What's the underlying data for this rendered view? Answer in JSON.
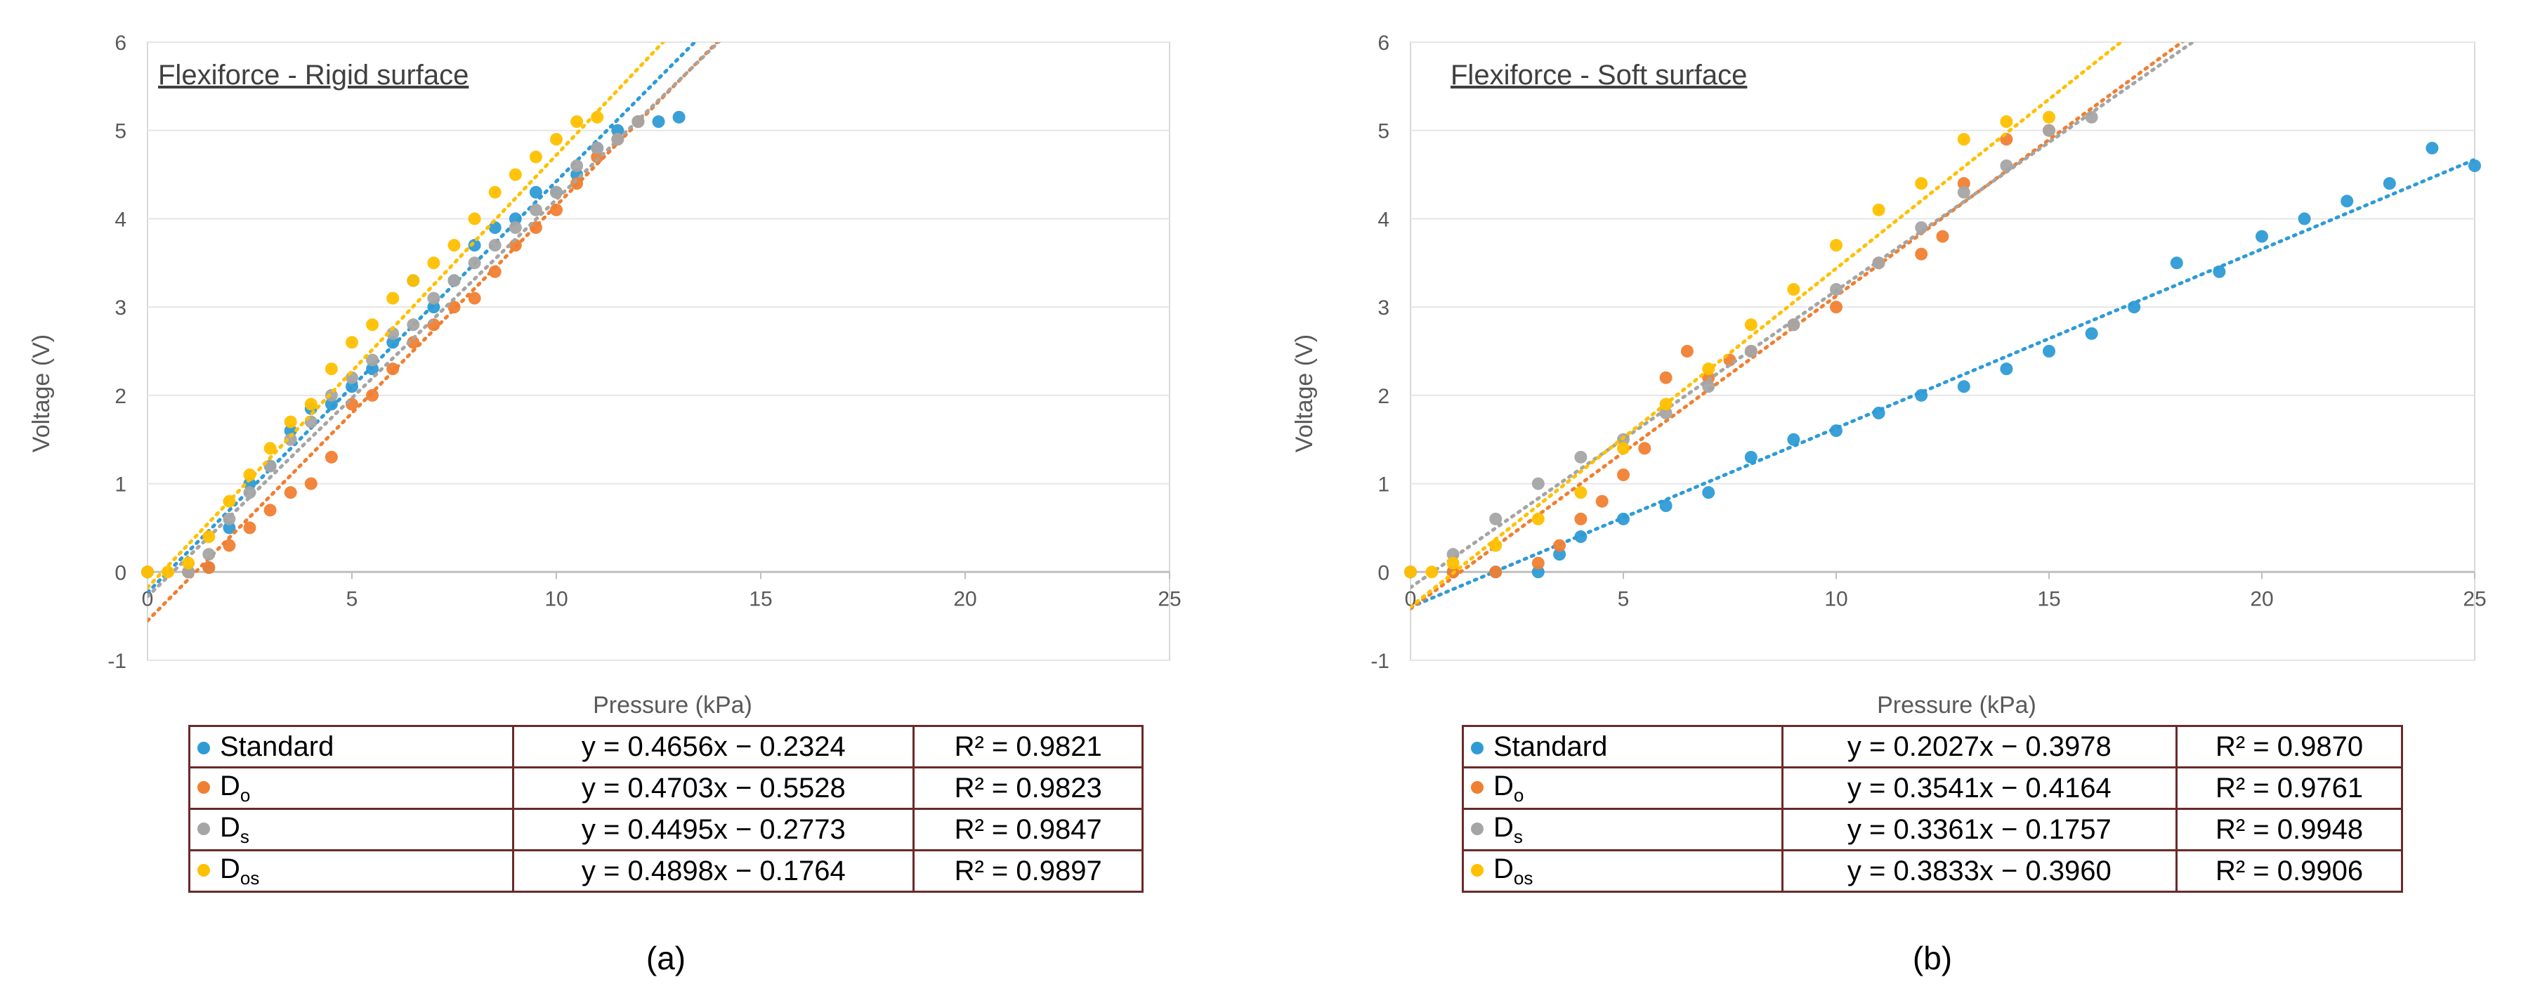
{
  "chart_data": [
    {
      "type": "scatter",
      "panel_label": "(a)",
      "title": "Flexiforce - Rigid surface",
      "xlabel": "Pressure (kPa)",
      "ylabel": "Voltage (V)",
      "xlim": [
        0,
        25
      ],
      "ylim": [
        -1,
        6
      ],
      "xticks": [
        "0",
        "5",
        "10",
        "15",
        "20",
        "25"
      ],
      "yticks": [
        "-1",
        "0",
        "1",
        "2",
        "3",
        "4",
        "5",
        "6"
      ],
      "grid": "horizontal",
      "trendlines": "dotted linear",
      "series": [
        {
          "name": "Standard",
          "sub": "",
          "color": "#2e9bd6",
          "slope": 0.4656,
          "intercept": -0.2324,
          "equation": "y = 0.4656x − 0.2324",
          "r2": "R² = 0.9821",
          "x": [
            0,
            1,
            1.5,
            2,
            2.5,
            3,
            3.5,
            4,
            4.5,
            5,
            5.5,
            6,
            6.5,
            7,
            7.5,
            8,
            8.5,
            9,
            9.5,
            10,
            10.5,
            11,
            11.5,
            12,
            12.5,
            13
          ],
          "y": [
            0,
            0,
            0.05,
            0.5,
            1.0,
            1.2,
            1.6,
            1.85,
            1.9,
            2.1,
            2.3,
            2.6,
            3.3,
            3.0,
            3.3,
            3.7,
            3.9,
            4.0,
            4.3,
            4.3,
            4.5,
            4.8,
            5.0,
            5.1,
            5.1,
            5.15
          ]
        },
        {
          "name": "D",
          "sub": "o",
          "color": "#f07f32",
          "slope": 0.4703,
          "intercept": -0.5528,
          "equation": "y = 0.4703x − 0.5528",
          "r2": "R² = 0.9823",
          "x": [
            0,
            1,
            1.5,
            2,
            2.5,
            3,
            3.5,
            4,
            4.5,
            5,
            5.5,
            6,
            6.5,
            7,
            7.5,
            8,
            8.5,
            9,
            9.5,
            10,
            10.5,
            11,
            11.5,
            12
          ],
          "y": [
            0,
            0,
            0.05,
            0.3,
            0.5,
            0.7,
            0.9,
            1.0,
            1.3,
            1.9,
            2.0,
            2.3,
            2.6,
            2.8,
            3.0,
            3.1,
            3.4,
            3.7,
            3.9,
            4.1,
            4.4,
            4.7,
            4.9,
            5.1
          ]
        },
        {
          "name": "D",
          "sub": "s",
          "color": "#a5a5a5",
          "slope": 0.4495,
          "intercept": -0.2773,
          "equation": "y = 0.4495x − 0.2773",
          "r2": "R² = 0.9847",
          "x": [
            0,
            1,
            1.5,
            2,
            2.5,
            3,
            3.5,
            4,
            4.5,
            5,
            5.5,
            6,
            6.5,
            7,
            7.5,
            8,
            8.5,
            9,
            9.5,
            10,
            10.5,
            11,
            11.5,
            12
          ],
          "y": [
            0,
            0,
            0.2,
            0.6,
            0.9,
            1.2,
            1.5,
            1.7,
            2.0,
            2.2,
            2.4,
            2.7,
            2.8,
            3.1,
            3.3,
            3.5,
            3.7,
            3.9,
            4.1,
            4.3,
            4.6,
            4.8,
            4.9,
            5.1
          ]
        },
        {
          "name": "D",
          "sub": "os",
          "color": "#ffc000",
          "slope": 0.4898,
          "intercept": -0.1764,
          "equation": "y = 0.4898x − 0.1764",
          "r2": "R² = 0.9897",
          "x": [
            0,
            0.5,
            1,
            1.5,
            2,
            2.5,
            3,
            3.5,
            4,
            4.5,
            5,
            5.5,
            6,
            6.5,
            7,
            7.5,
            8,
            8.5,
            9,
            9.5,
            10,
            10.5,
            11
          ],
          "y": [
            0,
            0,
            0.1,
            0.4,
            0.8,
            1.1,
            1.4,
            1.7,
            1.9,
            2.3,
            2.6,
            2.8,
            3.1,
            3.3,
            3.5,
            3.7,
            4.0,
            4.3,
            4.5,
            4.7,
            4.9,
            5.1,
            5.15
          ]
        }
      ]
    },
    {
      "type": "scatter",
      "panel_label": "(b)",
      "title": "Flexiforce - Soft surface",
      "xlabel": "Pressure (kPa)",
      "ylabel": "Voltage (V)",
      "xlim": [
        0,
        25
      ],
      "ylim": [
        -1,
        6
      ],
      "xticks": [
        "0",
        "5",
        "10",
        "15",
        "20",
        "25"
      ],
      "yticks": [
        "-1",
        "0",
        "1",
        "2",
        "3",
        "4",
        "5",
        "6"
      ],
      "grid": "horizontal",
      "trendlines": "dotted linear",
      "series": [
        {
          "name": "Standard",
          "sub": "",
          "color": "#2e9bd6",
          "slope": 0.2027,
          "intercept": -0.3978,
          "equation": "y = 0.2027x − 0.3978",
          "r2": "R² = 0.9870",
          "x": [
            0,
            1,
            2,
            3,
            3.5,
            4,
            5,
            6,
            7,
            8,
            9,
            10,
            11,
            12,
            13,
            14,
            15,
            16,
            17,
            18,
            19,
            20,
            21,
            22,
            23,
            24,
            25
          ],
          "y": [
            0,
            0,
            0,
            0,
            0.2,
            0.4,
            0.6,
            0.75,
            0.9,
            1.3,
            1.5,
            1.6,
            1.8,
            2.0,
            2.1,
            2.3,
            2.5,
            2.7,
            3.0,
            3.5,
            3.4,
            3.8,
            4.0,
            4.2,
            4.4,
            4.8,
            4.6
          ]
        },
        {
          "name": "D",
          "sub": "o",
          "color": "#f07f32",
          "slope": 0.3541,
          "intercept": -0.4164,
          "equation": "y = 0.3541x − 0.4164",
          "r2": "R² = 0.9761",
          "x": [
            0,
            1,
            2,
            3,
            3.5,
            4,
            4.5,
            5,
            5.5,
            6,
            6.5,
            7,
            7.5,
            8,
            9,
            10,
            11,
            12,
            12.5,
            13,
            14,
            15
          ],
          "y": [
            0,
            0,
            0,
            0.1,
            0.3,
            0.6,
            0.8,
            1.1,
            1.4,
            2.2,
            2.5,
            2.2,
            2.4,
            2.5,
            2.8,
            3.0,
            3.5,
            3.6,
            3.8,
            4.4,
            4.9,
            5.0
          ]
        },
        {
          "name": "D",
          "sub": "s",
          "color": "#a5a5a5",
          "slope": 0.3361,
          "intercept": -0.1757,
          "equation": "y = 0.3361x − 0.1757",
          "r2": "R² = 0.9948",
          "x": [
            0,
            1,
            2,
            3,
            4,
            5,
            6,
            7,
            8,
            9,
            10,
            11,
            12,
            13,
            14,
            15,
            16
          ],
          "y": [
            0,
            0.2,
            0.6,
            1.0,
            1.3,
            1.5,
            1.8,
            2.1,
            2.5,
            2.8,
            3.2,
            3.5,
            3.9,
            4.3,
            4.6,
            5.0,
            5.15
          ]
        },
        {
          "name": "D",
          "sub": "os",
          "color": "#ffc000",
          "slope": 0.3833,
          "intercept": -0.396,
          "equation": "y = 0.3833x − 0.3960",
          "r2": "R² = 0.9906",
          "x": [
            0,
            0.5,
            1,
            2,
            3,
            4,
            5,
            6,
            7,
            8,
            9,
            10,
            11,
            12,
            13,
            14,
            15
          ],
          "y": [
            0,
            0,
            0.1,
            0.3,
            0.6,
            0.9,
            1.4,
            1.9,
            2.3,
            2.8,
            3.2,
            3.7,
            4.1,
            4.4,
            4.9,
            5.1,
            5.15
          ]
        }
      ]
    }
  ]
}
